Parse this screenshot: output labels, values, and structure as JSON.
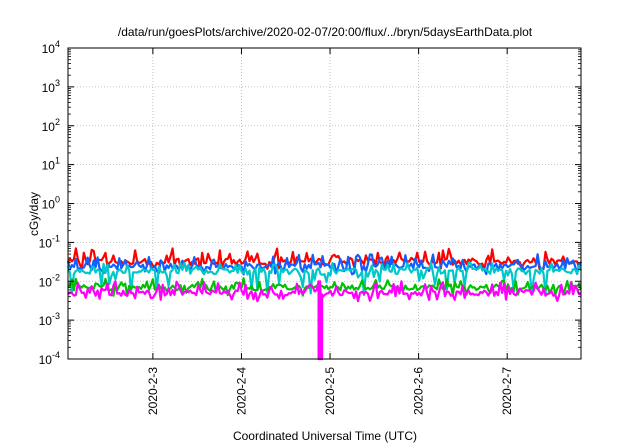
{
  "chart_data": {
    "type": "line",
    "title": "/data/run/goesPlots/archive/2020-02-07/20:00/flux/../bryn/5daysEarthData.plot",
    "xlabel": "Coordinated Universal Time (UTC)",
    "ylabel": "cGy/day",
    "yscale": "log",
    "ylim": [
      0.0001,
      10000
    ],
    "y_ticks": [
      {
        "base": "10",
        "exp": "-4",
        "value": 0.0001
      },
      {
        "base": "10",
        "exp": "-3",
        "value": 0.001
      },
      {
        "base": "10",
        "exp": "-2",
        "value": 0.01
      },
      {
        "base": "10",
        "exp": "-1",
        "value": 0.1
      },
      {
        "base": "10",
        "exp": "0",
        "value": 1
      },
      {
        "base": "10",
        "exp": "1",
        "value": 10
      },
      {
        "base": "10",
        "exp": "2",
        "value": 100
      },
      {
        "base": "10",
        "exp": "3",
        "value": 1000
      },
      {
        "base": "10",
        "exp": "4",
        "value": 10000
      }
    ],
    "xlim": [
      "2020-02-02T01:00",
      "2020-02-07T20:00"
    ],
    "x_ticks": [
      {
        "label": "2020-2-3",
        "value": "2020-02-03"
      },
      {
        "label": "2020-2-4",
        "value": "2020-02-04"
      },
      {
        "label": "2020-2-5",
        "value": "2020-02-05"
      },
      {
        "label": "2020-2-6",
        "value": "2020-02-06"
      },
      {
        "label": "2020-2-7",
        "value": "2020-02-07"
      }
    ],
    "grid": true,
    "legend": "none",
    "series": [
      {
        "color": "#ff0000",
        "typical_y": 0.032,
        "y_range": [
          0.02,
          0.07
        ],
        "noisy": true
      },
      {
        "color": "#1060ff",
        "typical_y": 0.024,
        "y_range": [
          0.015,
          0.05
        ],
        "noisy": true
      },
      {
        "color": "#00c8c8",
        "typical_y": 0.018,
        "y_range": [
          0.004,
          0.03
        ],
        "noisy": true
      },
      {
        "color": "#00c000",
        "typical_y": 0.007,
        "y_range": [
          0.004,
          0.012
        ],
        "noisy": true
      },
      {
        "color": "#ff00ff",
        "typical_y": 0.005,
        "y_range": [
          0.003,
          0.01
        ],
        "noisy": true
      }
    ],
    "dropout": {
      "x": "2020-02-04T21:00",
      "series_color": "#ff00ff",
      "y": 0.0001
    }
  }
}
